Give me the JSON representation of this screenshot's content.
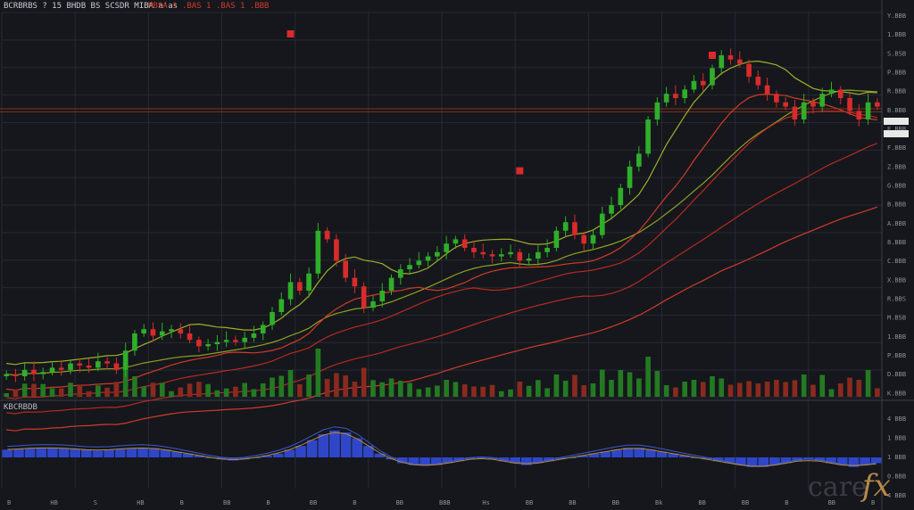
{
  "header": {
    "symbol_text": "BCRBRBS ? 15 BHDB BS  SCSDR MIBA a'as",
    "ohlc_text": "MBSA  1 .BAS  1 .BAS  1 .BBB"
  },
  "indicator_label": "KBCRBDB",
  "watermark": {
    "care": "care",
    "fx": "fx"
  },
  "colors": {
    "background": "#15171c",
    "grid": "#262a33",
    "up": "#2fae2a",
    "down": "#d92b2b",
    "ma_fast": "#9fae2a",
    "ma_mid": "#8fa020",
    "ma_red1": "#d23a2a",
    "ma_red2": "#b82a22",
    "macd_bar": "#2f46c8",
    "macd_line1": "#3a5ad0",
    "macd_line2": "#b98a3a",
    "level_line": "#7a3520"
  },
  "chart_data": [
    {
      "type": "candlestick",
      "title": "",
      "price_ticks": [
        "Y.BBB",
        "1.BBB",
        "S.B5B",
        "P.BBB",
        "R.BBB",
        "B.BBB",
        "E.BBB",
        "F.BBB",
        "Z.BBB",
        "G.BBB",
        "B.BBB",
        "A.BBB",
        "8.BBB",
        "C.BBB",
        "X.BBB",
        "R.BBS",
        "M.B5B",
        "1.BBB",
        "P.BBB",
        "D.BBB",
        "K.BBB"
      ],
      "x_ticks": [
        "B",
        "HB",
        "S",
        "HB",
        "B",
        "BB",
        "B",
        "BB",
        "B",
        "BB",
        "BBB",
        "Hs",
        "BB",
        "BB",
        "BB",
        "Bk",
        "BB",
        "BB",
        "B",
        "BB",
        "B"
      ],
      "ylim": [
        0.5,
        9.5
      ],
      "closes": [
        1.05,
        1.0,
        1.15,
        1.05,
        1.1,
        1.2,
        1.15,
        1.3,
        1.25,
        1.2,
        1.35,
        1.3,
        1.15,
        1.6,
        2.0,
        2.1,
        1.95,
        2.05,
        2.1,
        2.0,
        1.85,
        1.7,
        1.75,
        1.8,
        1.85,
        1.8,
        1.9,
        2.0,
        2.2,
        2.5,
        2.8,
        3.2,
        3.0,
        3.4,
        4.4,
        4.2,
        3.7,
        3.3,
        3.1,
        2.6,
        2.75,
        3.0,
        3.3,
        3.5,
        3.6,
        3.7,
        3.8,
        3.9,
        4.1,
        4.2,
        4.0,
        3.9,
        3.85,
        3.8,
        3.85,
        3.9,
        3.7,
        3.75,
        3.9,
        4.0,
        4.4,
        4.6,
        4.3,
        4.1,
        4.3,
        4.8,
        5.0,
        5.4,
        5.9,
        6.2,
        7.0,
        7.4,
        7.6,
        7.5,
        7.7,
        7.9,
        7.8,
        8.2,
        8.5,
        8.4,
        8.3,
        8.0,
        7.8,
        7.6,
        7.4,
        7.3,
        7.0,
        7.4,
        7.3,
        7.6,
        7.7,
        7.5,
        7.2,
        7.0,
        7.4,
        7.3
      ],
      "macd": {
        "label": "KBCRBDB",
        "ylim": [
          -1.0,
          1.0
        ],
        "ticks": [
          "4 BBB",
          "1 BBB",
          "1 BBB",
          "0.BBB",
          "4 BBB"
        ],
        "histogram": [
          0.2,
          0.22,
          0.24,
          0.25,
          0.25,
          0.24,
          0.22,
          0.2,
          0.18,
          0.2,
          0.22,
          0.24,
          0.25,
          0.24,
          0.2,
          0.15,
          0.1,
          0.05,
          0.0,
          -0.05,
          -0.08,
          -0.05,
          0.0,
          0.05,
          0.1,
          0.2,
          0.3,
          0.45,
          0.6,
          0.7,
          0.65,
          0.5,
          0.3,
          0.1,
          -0.05,
          -0.15,
          -0.2,
          -0.22,
          -0.2,
          -0.15,
          -0.1,
          -0.05,
          0.0,
          -0.05,
          -0.1,
          -0.15,
          -0.2,
          -0.15,
          -0.1,
          -0.05,
          0.0,
          0.05,
          0.1,
          0.15,
          0.2,
          0.25,
          0.25,
          0.2,
          0.15,
          0.1,
          0.05,
          0.0,
          -0.05,
          -0.1,
          -0.15,
          -0.2,
          -0.25,
          -0.25,
          -0.2,
          -0.15,
          -0.1,
          -0.05,
          -0.1,
          -0.15,
          -0.2,
          -0.25,
          -0.2,
          -0.15
        ]
      }
    }
  ]
}
